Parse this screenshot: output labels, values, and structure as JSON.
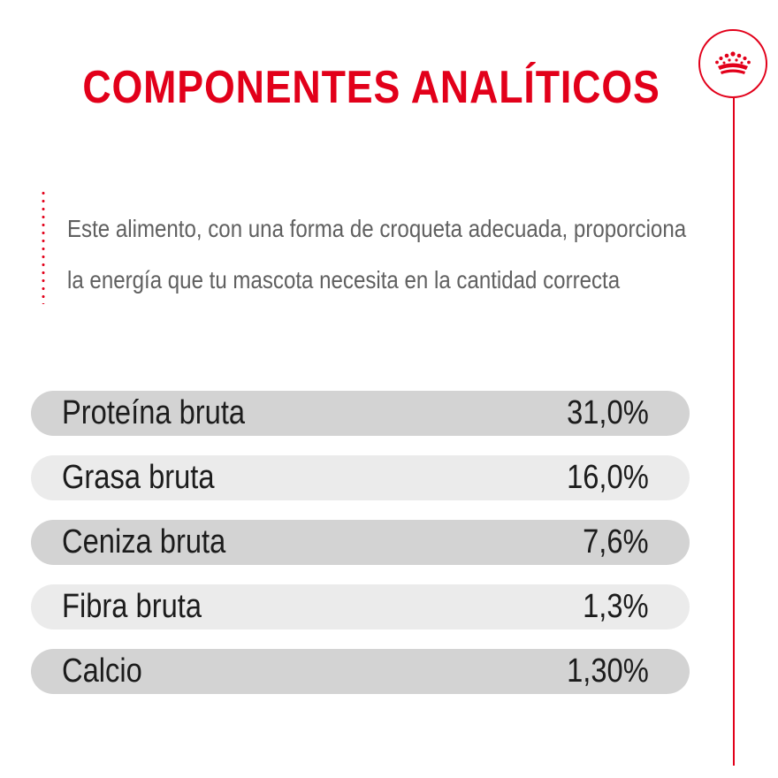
{
  "title": "COMPONENTES ANALÍTICOS",
  "logo_icon": "crown-icon",
  "description": {
    "line1": "Este alimento, con una forma de croqueta adecuada, proporciona",
    "line2": "la energía que tu mascota necesita en la cantidad correcta"
  },
  "components": [
    {
      "label": "Proteína bruta",
      "value": "31,0%"
    },
    {
      "label": "Grasa bruta",
      "value": "16,0%"
    },
    {
      "label": "Ceniza bruta",
      "value": "7,6%"
    },
    {
      "label": "Fibra bruta",
      "value": "1,3%"
    },
    {
      "label": "Calcio",
      "value": "1,30%"
    }
  ],
  "colors": {
    "accent": "#e2001a",
    "row_dark": "#d3d3d3",
    "row_light": "#ebebeb",
    "text": "#1c1c1c",
    "description_text": "#606060"
  }
}
